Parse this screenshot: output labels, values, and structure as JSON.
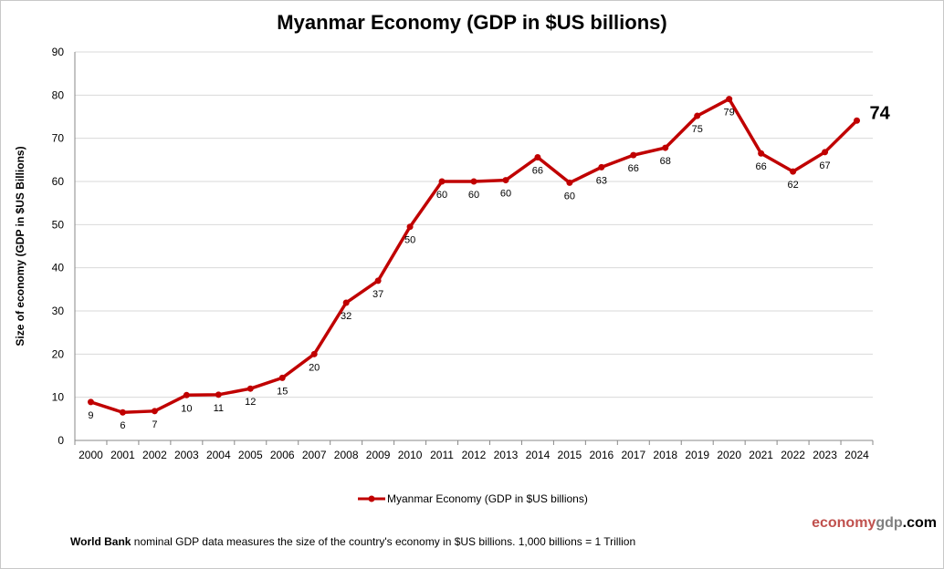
{
  "chart_data": {
    "type": "line",
    "title": "Myanmar Economy (GDP in $US billions)",
    "ylabel": "Size of economy (GDP in $US Billions)",
    "xlabel": "",
    "ylim": [
      0,
      90
    ],
    "yticks": [
      0,
      10,
      20,
      30,
      40,
      50,
      60,
      70,
      80,
      90
    ],
    "grid": true,
    "legend": "bottom",
    "categories": [
      "2000",
      "2001",
      "2002",
      "2003",
      "2004",
      "2005",
      "2006",
      "2007",
      "2008",
      "2009",
      "2010",
      "2011",
      "2012",
      "2013",
      "2014",
      "2015",
      "2016",
      "2017",
      "2018",
      "2019",
      "2020",
      "2021",
      "2022",
      "2023",
      "2024"
    ],
    "series": [
      {
        "name": "Myanmar Economy (GDP in $US billions)",
        "color": "#c00000",
        "values": [
          8.9,
          6.5,
          6.8,
          10.5,
          10.6,
          12.0,
          14.5,
          20.0,
          31.9,
          37.0,
          49.5,
          60.0,
          60.0,
          60.3,
          65.6,
          59.7,
          63.3,
          66.1,
          67.8,
          75.2,
          79.1,
          66.5,
          62.3,
          66.8,
          74.1
        ],
        "labels": [
          "9",
          "6",
          "7",
          "10",
          "11",
          "12",
          "15",
          "20",
          "32",
          "37",
          "50",
          "60",
          "60",
          "60",
          "66",
          "60",
          "63",
          "66",
          "68",
          "75",
          "79",
          "66",
          "62",
          "67",
          "74"
        ]
      }
    ]
  },
  "footer": {
    "bold": "World Bank",
    "text": " nominal GDP data  measures the size of the country's economy in $US billions. 1,000 billions = 1 Trillion"
  },
  "brand": {
    "part1": "economy",
    "part2": "gdp",
    "part3": ".com",
    "color1": "#c0504d",
    "color2": "#808080",
    "color3": "#000000"
  }
}
